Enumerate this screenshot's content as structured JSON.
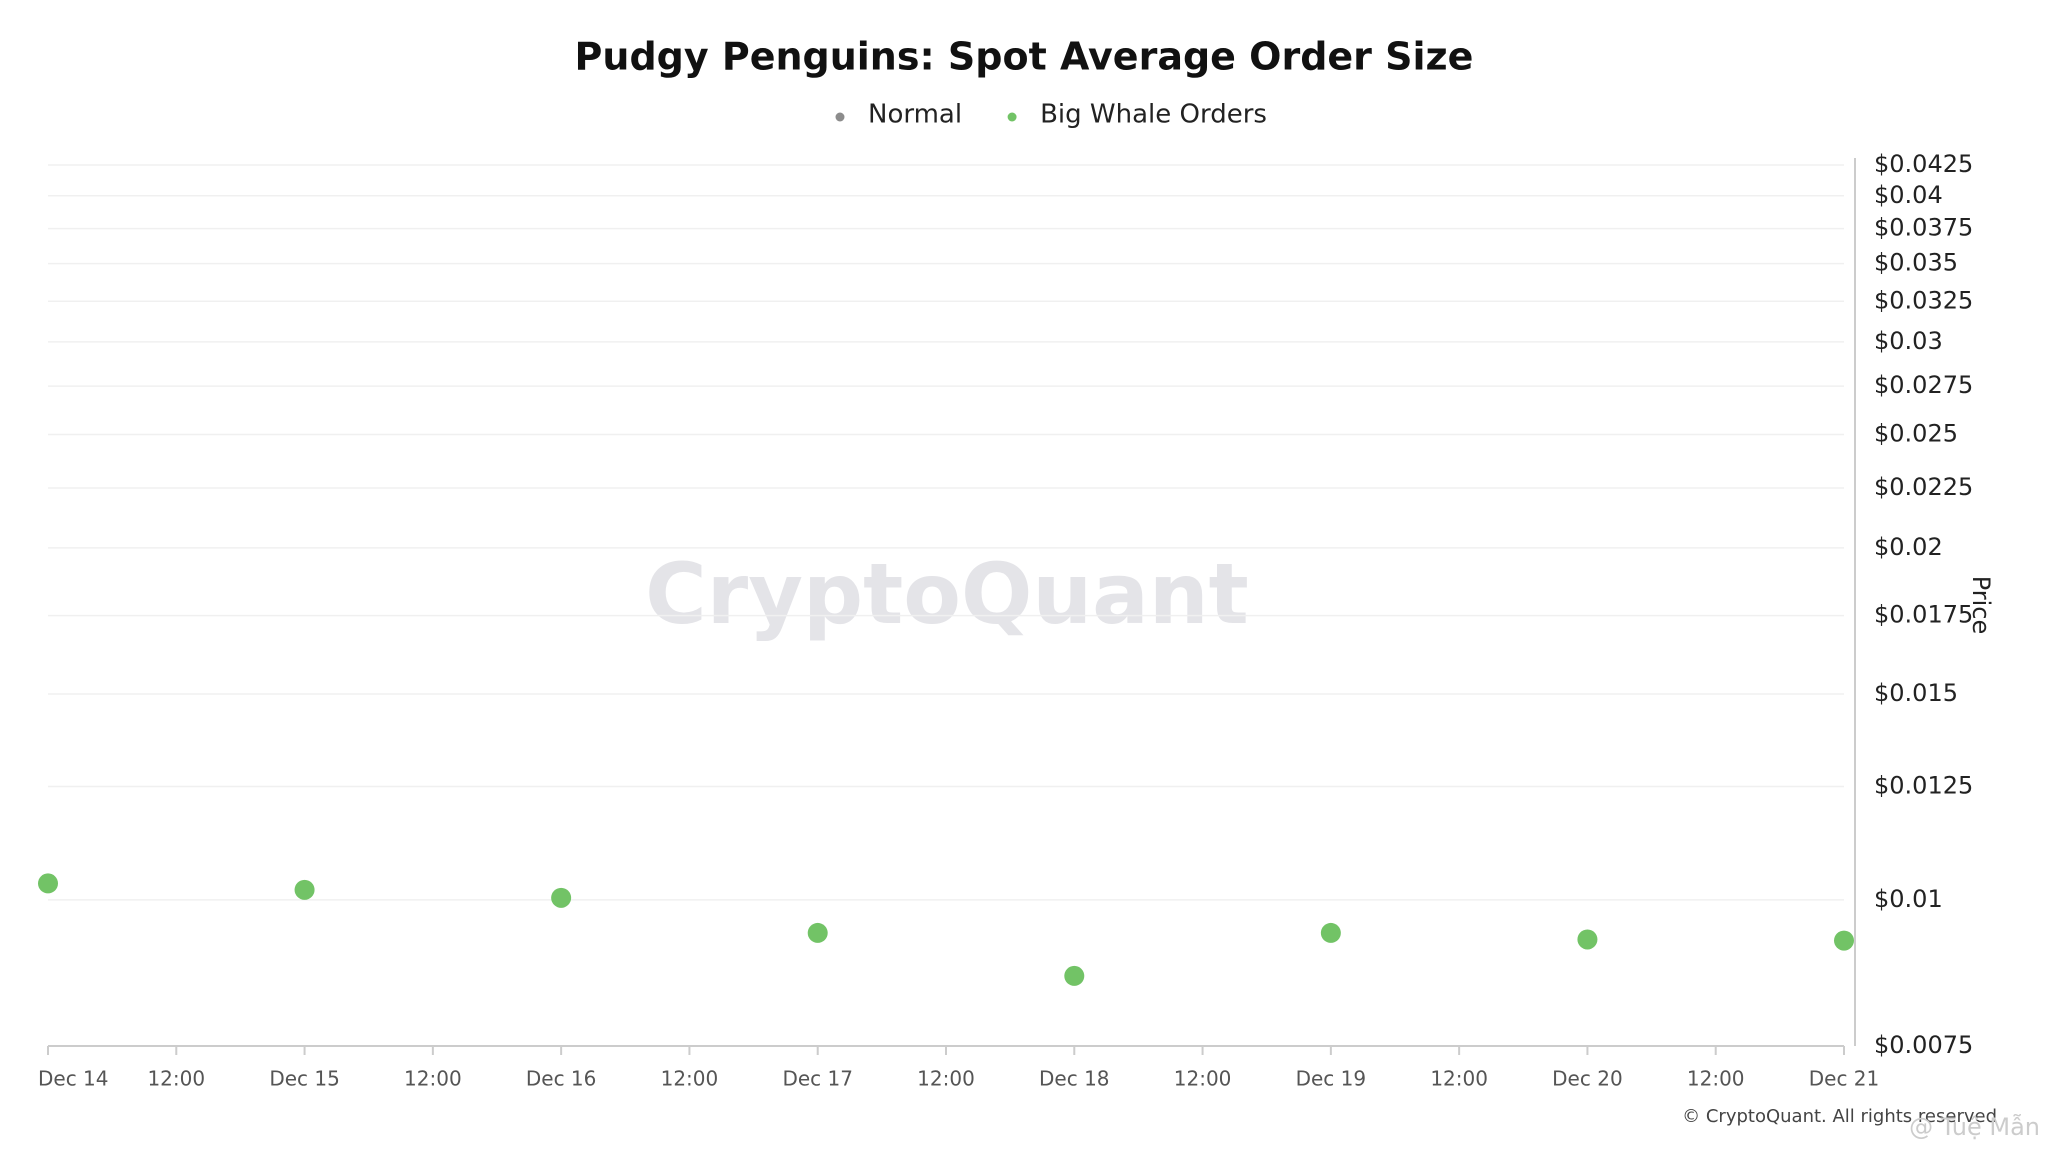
{
  "chart_data": {
    "type": "scatter",
    "title": "Pudgy Penguins: Spot Average Order Size",
    "y_axis_label": "Price",
    "watermark": "CryptoQuant",
    "footer": "© CryptoQuant. All rights reserved",
    "author_mark": "@ Tuệ Mẫn",
    "x": [
      "Dec 14",
      "Dec 15",
      "Dec 16",
      "Dec 17",
      "Dec 18",
      "Dec 19",
      "Dec 20",
      "Dec 21"
    ],
    "xticks": [
      "Dec 14",
      "12:00",
      "Dec 15",
      "12:00",
      "Dec 16",
      "12:00",
      "Dec 17",
      "12:00",
      "Dec 18",
      "12:00",
      "Dec 19",
      "12:00",
      "Dec 20",
      "12:00",
      "Dec 21"
    ],
    "series": [
      {
        "name": "Normal",
        "color": "#8c8c8c",
        "values": [
          null,
          null,
          null,
          null,
          null,
          null,
          null,
          null
        ]
      },
      {
        "name": "Big Whale Orders",
        "color": "#72c366",
        "values": [
          0.01033,
          0.0102,
          0.01004,
          0.00937,
          0.00861,
          0.00937,
          0.00925,
          0.00923
        ]
      }
    ],
    "log_scale": true,
    "ylim": [
      0.0075,
      0.0425
    ],
    "yticks": [
      {
        "value": 0.0075,
        "label": "$0.0075"
      },
      {
        "value": 0.01,
        "label": "$0.01"
      },
      {
        "value": 0.0125,
        "label": "$0.0125"
      },
      {
        "value": 0.015,
        "label": "$0.015"
      },
      {
        "value": 0.0175,
        "label": "$0.0175"
      },
      {
        "value": 0.02,
        "label": "$0.02"
      },
      {
        "value": 0.0225,
        "label": "$0.0225"
      },
      {
        "value": 0.025,
        "label": "$0.025"
      },
      {
        "value": 0.0275,
        "label": "$0.0275"
      },
      {
        "value": 0.03,
        "label": "$0.03"
      },
      {
        "value": 0.0325,
        "label": "$0.0325"
      },
      {
        "value": 0.035,
        "label": "$0.035"
      },
      {
        "value": 0.0375,
        "label": "$0.0375"
      },
      {
        "value": 0.04,
        "label": "$0.04"
      },
      {
        "value": 0.0425,
        "label": "$0.0425"
      }
    ],
    "grid": true
  }
}
